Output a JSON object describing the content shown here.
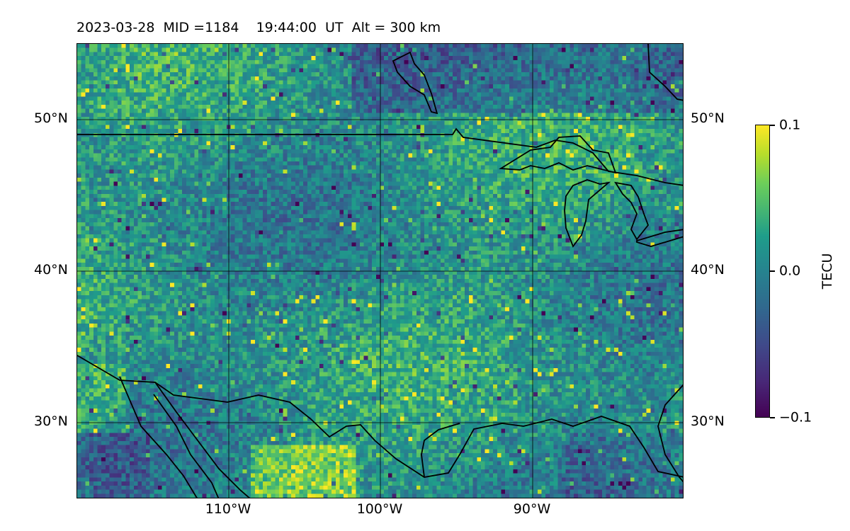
{
  "title": "2023-03-28  MID =1184    19:44:00  UT  Alt = 300 km",
  "map": {
    "lat_ticks": [
      "50°N",
      "40°N",
      "30°N"
    ],
    "lon_ticks": [
      "110°W",
      "100°W",
      "90°W"
    ],
    "lat_range": [
      25,
      55
    ],
    "lon_range": [
      -120,
      -80
    ],
    "gridlines": true,
    "coastlines": true,
    "borders": true
  },
  "colorbar": {
    "label": "TECU",
    "cmap": "viridis",
    "range": [
      -0.1,
      0.1
    ],
    "tick_labels": [
      "0.1",
      "0.0",
      "−0.1"
    ]
  },
  "chart_data": {
    "type": "heatmap",
    "title": "2023-03-28  MID =1184    19:44:00  UT  Alt = 300 km",
    "xlabel": "",
    "ylabel": "",
    "colorbar_label": "TECU",
    "value_range": [
      -0.1,
      0.1
    ],
    "x_ticks": [
      "110°W",
      "100°W",
      "90°W"
    ],
    "y_ticks": [
      "50°N",
      "40°N",
      "30°N"
    ]
  }
}
